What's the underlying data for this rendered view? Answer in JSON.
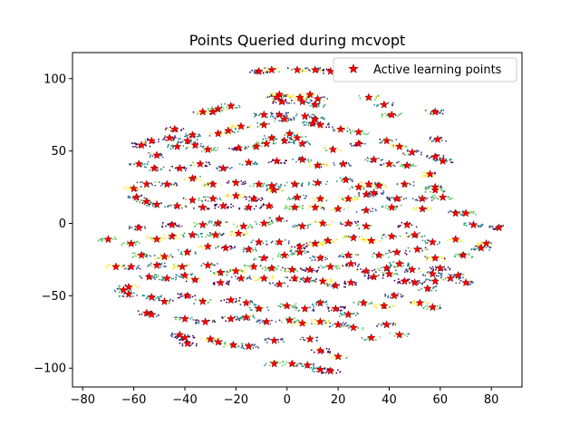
{
  "chart_data": {
    "type": "scatter",
    "title": "Points Queried during mcvopt",
    "xlabel": "",
    "ylabel": "",
    "xlim": [
      -84,
      92
    ],
    "ylim": [
      -113,
      118
    ],
    "xticks": [
      -80,
      -60,
      -40,
      -20,
      0,
      20,
      40,
      60,
      80
    ],
    "yticks": [
      -100,
      -50,
      0,
      50,
      100
    ],
    "grid": false,
    "legend_position": "top-right",
    "colors": {
      "marker": "#ff0000",
      "marker_edge": "#8b0000",
      "background_classes": [
        "#440154",
        "#3b528b",
        "#21918c",
        "#5ec962",
        "#fde725"
      ]
    },
    "background_note_series_name": "",
    "series": [
      {
        "name": "Active learning points",
        "marker": "star",
        "points": [
          [
            -11,
            105
          ],
          [
            -6,
            106
          ],
          [
            4,
            106
          ],
          [
            11,
            106
          ],
          [
            17,
            105
          ],
          [
            -3,
            89
          ],
          [
            -4,
            87
          ],
          [
            -2,
            84
          ],
          [
            5,
            87
          ],
          [
            6,
            84
          ],
          [
            9,
            89
          ],
          [
            12,
            86
          ],
          [
            11,
            82
          ],
          [
            -33,
            77
          ],
          [
            -29,
            77
          ],
          [
            -27,
            79
          ],
          [
            -22,
            81
          ],
          [
            -9,
            75
          ],
          [
            -3,
            75
          ],
          [
            -1,
            72
          ],
          [
            7,
            74
          ],
          [
            11,
            72
          ],
          [
            32,
            87
          ],
          [
            38,
            82
          ],
          [
            41,
            75
          ],
          [
            58,
            77
          ],
          [
            -57,
            54
          ],
          [
            -53,
            57
          ],
          [
            -46,
            59
          ],
          [
            -44,
            65
          ],
          [
            -37,
            61
          ],
          [
            -27,
            62
          ],
          [
            -23,
            64
          ],
          [
            -18,
            67
          ],
          [
            -9,
            68
          ],
          [
            1,
            62
          ],
          [
            4,
            59
          ],
          [
            10,
            69
          ],
          [
            13,
            68
          ],
          [
            21,
            65
          ],
          [
            28,
            63
          ],
          [
            -51,
            47
          ],
          [
            -43,
            53
          ],
          [
            -39,
            57
          ],
          [
            -36,
            54
          ],
          [
            -31,
            51
          ],
          [
            -19,
            52
          ],
          [
            -12,
            53
          ],
          [
            -8,
            55
          ],
          [
            -6,
            59
          ],
          [
            -1,
            57
          ],
          [
            6,
            55
          ],
          [
            18,
            51
          ],
          [
            28,
            55
          ],
          [
            39,
            57
          ],
          [
            44,
            53
          ],
          [
            49,
            49
          ],
          [
            59,
            58
          ],
          [
            58,
            46
          ],
          [
            61,
            43
          ],
          [
            -58,
            41
          ],
          [
            -52,
            38
          ],
          [
            -42,
            38
          ],
          [
            -34,
            41
          ],
          [
            -25,
            38
          ],
          [
            -15,
            42
          ],
          [
            -4,
            43
          ],
          [
            6,
            44
          ],
          [
            12,
            40
          ],
          [
            22,
            41
          ],
          [
            34,
            44
          ],
          [
            40,
            41
          ],
          [
            47,
            40
          ],
          [
            56,
            34
          ],
          [
            58,
            25
          ],
          [
            -60,
            24
          ],
          [
            -55,
            27
          ],
          [
            -47,
            27
          ],
          [
            -37,
            31
          ],
          [
            -29,
            27
          ],
          [
            -20,
            28
          ],
          [
            -11,
            27
          ],
          [
            -6,
            26
          ],
          [
            3,
            27
          ],
          [
            12,
            28
          ],
          [
            23,
            30
          ],
          [
            28,
            25
          ],
          [
            32,
            27
          ],
          [
            36,
            26
          ],
          [
            46,
            27
          ],
          [
            58,
            23
          ],
          [
            -59,
            18
          ],
          [
            -55,
            15
          ],
          [
            -51,
            13
          ],
          [
            -37,
            16
          ],
          [
            -29,
            17
          ],
          [
            -20,
            19
          ],
          [
            -13,
            17
          ],
          [
            -5,
            23
          ],
          [
            4,
            18
          ],
          [
            13,
            17
          ],
          [
            24,
            17
          ],
          [
            31,
            20
          ],
          [
            34,
            21
          ],
          [
            43,
            17
          ],
          [
            53,
            17
          ],
          [
            61,
            18
          ],
          [
            -43,
            12
          ],
          [
            -33,
            11
          ],
          [
            -25,
            12
          ],
          [
            -15,
            11
          ],
          [
            -7,
            12
          ],
          [
            3,
            11
          ],
          [
            11,
            11
          ],
          [
            20,
            10
          ],
          [
            31,
            9
          ],
          [
            41,
            11
          ],
          [
            53,
            10
          ],
          [
            66,
            7
          ],
          [
            -58,
            -3
          ],
          [
            -45,
            -1
          ],
          [
            -33,
            -1
          ],
          [
            -27,
            0
          ],
          [
            -17,
            -2
          ],
          [
            -9,
            0
          ],
          [
            -3,
            3
          ],
          [
            6,
            -2
          ],
          [
            14,
            0
          ],
          [
            24,
            0
          ],
          [
            31,
            -2
          ],
          [
            47,
            -1
          ],
          [
            70,
            7
          ],
          [
            73,
            -1
          ],
          [
            83,
            -3
          ],
          [
            -70,
            -11
          ],
          [
            -61,
            -14
          ],
          [
            -51,
            -11
          ],
          [
            -45,
            -9
          ],
          [
            -37,
            -8
          ],
          [
            -28,
            -8
          ],
          [
            -19,
            -7
          ],
          [
            -11,
            -13
          ],
          [
            -3,
            -13
          ],
          [
            5,
            -16
          ],
          [
            11,
            -14
          ],
          [
            16,
            -12
          ],
          [
            26,
            -10
          ],
          [
            33,
            -12
          ],
          [
            41,
            -9
          ],
          [
            50,
            -8
          ],
          [
            57,
            -13
          ],
          [
            66,
            -11
          ],
          [
            76,
            -17
          ],
          [
            78,
            -14
          ],
          [
            69,
            -22
          ],
          [
            -57,
            -22
          ],
          [
            -48,
            -23
          ],
          [
            -39,
            -20
          ],
          [
            -31,
            -16
          ],
          [
            -24,
            -17
          ],
          [
            -15,
            -18
          ],
          [
            -9,
            -24
          ],
          [
            -1,
            -22
          ],
          [
            5,
            -20
          ],
          [
            13,
            -24
          ],
          [
            24,
            -22
          ],
          [
            36,
            -22
          ],
          [
            43,
            -20
          ],
          [
            51,
            -18
          ],
          [
            58,
            -24
          ],
          [
            60,
            -31
          ],
          [
            -67,
            -30
          ],
          [
            -61,
            -30
          ],
          [
            -51,
            -29
          ],
          [
            -41,
            -30
          ],
          [
            -31,
            -29
          ],
          [
            -26,
            -34
          ],
          [
            -20,
            -33
          ],
          [
            -13,
            -30
          ],
          [
            -6,
            -31
          ],
          [
            2,
            -32
          ],
          [
            9,
            -32
          ],
          [
            17,
            -30
          ],
          [
            25,
            -28
          ],
          [
            31,
            -33
          ],
          [
            39,
            -31
          ],
          [
            44,
            -28
          ],
          [
            49,
            -32
          ],
          [
            57,
            -35
          ],
          [
            64,
            -38
          ],
          [
            70,
            -41
          ],
          [
            67,
            -36
          ],
          [
            -64,
            -46
          ],
          [
            -62,
            -44
          ],
          [
            -54,
            -37
          ],
          [
            -47,
            -38
          ],
          [
            -40,
            -36
          ],
          [
            -36,
            -39
          ],
          [
            -26,
            -41
          ],
          [
            -18,
            -38
          ],
          [
            -9,
            -38
          ],
          [
            -3,
            -42
          ],
          [
            3,
            -38
          ],
          [
            8,
            -39
          ],
          [
            14,
            -40
          ],
          [
            19,
            -43
          ],
          [
            25,
            -41
          ],
          [
            34,
            -37
          ],
          [
            40,
            -35
          ],
          [
            46,
            -40
          ],
          [
            50,
            -41
          ],
          [
            55,
            -45
          ],
          [
            58,
            -40
          ],
          [
            -62,
            -49
          ],
          [
            -53,
            -51
          ],
          [
            -48,
            -54
          ],
          [
            -39,
            -50
          ],
          [
            -33,
            -54
          ],
          [
            -22,
            -53
          ],
          [
            -16,
            -55
          ],
          [
            -11,
            -59
          ],
          [
            0,
            -57
          ],
          [
            7,
            -59
          ],
          [
            13,
            -55
          ],
          [
            19,
            -59
          ],
          [
            24,
            -63
          ],
          [
            30,
            -55
          ],
          [
            38,
            -57
          ],
          [
            42,
            -50
          ],
          [
            52,
            -55
          ],
          [
            57,
            -58
          ],
          [
            -55,
            -62
          ],
          [
            -53,
            -63
          ],
          [
            -40,
            -66
          ],
          [
            -32,
            -68
          ],
          [
            -22,
            -66
          ],
          [
            -16,
            -65
          ],
          [
            -8,
            -68
          ],
          [
            1,
            -67
          ],
          [
            6,
            -69
          ],
          [
            13,
            -68
          ],
          [
            20,
            -70
          ],
          [
            26,
            -72
          ],
          [
            33,
            -79
          ],
          [
            39,
            -70
          ],
          [
            44,
            -77
          ],
          [
            -42,
            -77
          ],
          [
            -40,
            -79
          ],
          [
            -39,
            -83
          ],
          [
            -30,
            -80
          ],
          [
            -27,
            -82
          ],
          [
            -21,
            -84
          ],
          [
            -15,
            -85
          ],
          [
            -5,
            -81
          ],
          [
            9,
            -80
          ],
          [
            13,
            -88
          ],
          [
            20,
            -92
          ],
          [
            -5,
            -97
          ],
          [
            2,
            -97
          ],
          [
            8,
            -98
          ],
          [
            13,
            -101
          ],
          [
            17,
            -102
          ]
        ]
      }
    ]
  }
}
